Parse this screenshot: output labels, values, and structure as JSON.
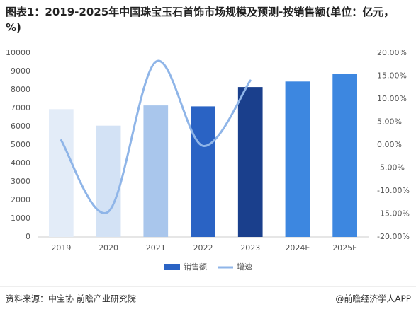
{
  "chart_data": {
    "type": "bar",
    "title": "图表1：2019-2025年中国珠宝玉石首饰市场规模及预测-按销售额(单位：亿元，%)",
    "categories": [
      "2019",
      "2020",
      "2021",
      "2022",
      "2023",
      "2024E",
      "2025E"
    ],
    "series": [
      {
        "name": "销售额",
        "type": "bar",
        "color": "#2a63c4",
        "colors": [
          "#e3ecf8",
          "#d3e2f5",
          "#a9c6ec",
          "#2a63c4",
          "#1a3f8c",
          "#3d87e0",
          "#3d87e0"
        ],
        "values": [
          6950,
          6050,
          7150,
          7100,
          8150,
          8450,
          8850
        ]
      },
      {
        "name": "增速",
        "type": "line",
        "color": "#8fb5e8",
        "axis": "y2",
        "values": [
          1.0,
          -14.5,
          18.1,
          -0.2,
          14.0,
          null,
          null
        ]
      }
    ],
    "ylim": [
      0,
      10000
    ],
    "yticks": [
      0,
      1000,
      2000,
      3000,
      4000,
      5000,
      6000,
      7000,
      8000,
      9000,
      10000
    ],
    "y2lim": [
      -20,
      20
    ],
    "y2ticks": [
      {
        "value": -20,
        "label": "-20.00%"
      },
      {
        "value": -15,
        "label": "-15.00%"
      },
      {
        "value": -10,
        "label": "-10.00%"
      },
      {
        "value": -5,
        "label": "-5.00%"
      },
      {
        "value": 0,
        "label": "0.00%"
      },
      {
        "value": 5,
        "label": "5.00%"
      },
      {
        "value": 10,
        "label": "10.00%"
      },
      {
        "value": 15,
        "label": "15.00%"
      },
      {
        "value": 20,
        "label": "20.00%"
      }
    ],
    "legend": "bottom",
    "source": "资料来源：中宝协 前瞻产业研究院",
    "brand": "@前瞻经济学人APP"
  }
}
